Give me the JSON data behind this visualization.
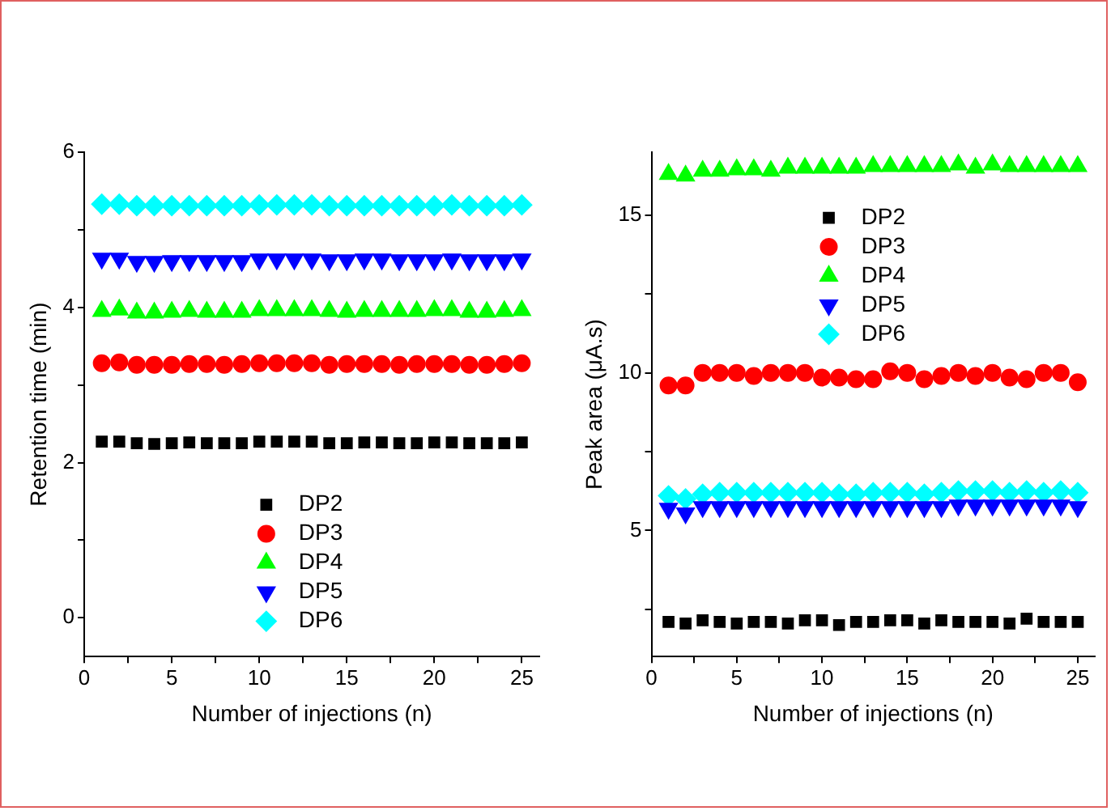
{
  "chart_data": [
    {
      "type": "scatter",
      "xlabel": "Number of injections (n)",
      "ylabel": "Retention time (min)",
      "x": [
        1,
        2,
        3,
        4,
        5,
        6,
        7,
        8,
        9,
        10,
        11,
        12,
        13,
        14,
        15,
        16,
        17,
        18,
        19,
        20,
        21,
        22,
        23,
        24,
        25
      ],
      "xlim": [
        0,
        26
      ],
      "xticks": [
        0,
        {
          "value": 2.5,
          "label": null
        },
        5,
        {
          "value": 7.5,
          "label": null
        },
        10,
        {
          "value": 12.5,
          "label": null
        },
        15,
        {
          "value": 17.5,
          "label": null
        },
        20,
        {
          "value": 22.5,
          "label": null
        },
        25
      ],
      "ylim": [
        -0.5,
        6
      ],
      "yticks": [
        0,
        {
          "value": 1,
          "label": null
        },
        2,
        {
          "value": 3,
          "label": null
        },
        4,
        {
          "value": 5,
          "label": null
        },
        6
      ],
      "grid": false,
      "legend": "bottom",
      "series": [
        {
          "name": "DP2",
          "color": "#000000",
          "marker": "square",
          "values": [
            2.27,
            2.27,
            2.25,
            2.24,
            2.25,
            2.26,
            2.25,
            2.25,
            2.25,
            2.27,
            2.27,
            2.27,
            2.27,
            2.25,
            2.25,
            2.26,
            2.26,
            2.25,
            2.25,
            2.26,
            2.26,
            2.25,
            2.25,
            2.25,
            2.26
          ]
        },
        {
          "name": "DP3",
          "color": "#ff0000",
          "marker": "circle",
          "values": [
            3.28,
            3.29,
            3.26,
            3.26,
            3.26,
            3.27,
            3.27,
            3.26,
            3.27,
            3.28,
            3.28,
            3.28,
            3.28,
            3.26,
            3.27,
            3.27,
            3.27,
            3.26,
            3.27,
            3.27,
            3.27,
            3.26,
            3.26,
            3.27,
            3.28
          ]
        },
        {
          "name": "DP4",
          "color": "#00ff00",
          "marker": "triangle",
          "values": [
            3.95,
            3.97,
            3.93,
            3.93,
            3.94,
            3.95,
            3.94,
            3.94,
            3.94,
            3.96,
            3.96,
            3.96,
            3.96,
            3.95,
            3.94,
            3.95,
            3.95,
            3.95,
            3.95,
            3.96,
            3.96,
            3.94,
            3.94,
            3.95,
            3.96
          ]
        },
        {
          "name": "DP5",
          "color": "#0000ff",
          "marker": "triangle-down",
          "values": [
            4.63,
            4.63,
            4.59,
            4.59,
            4.6,
            4.6,
            4.6,
            4.6,
            4.6,
            4.62,
            4.62,
            4.62,
            4.62,
            4.61,
            4.61,
            4.62,
            4.62,
            4.61,
            4.61,
            4.61,
            4.62,
            4.61,
            4.61,
            4.61,
            4.62
          ]
        },
        {
          "name": "DP6",
          "color": "#00ffff",
          "marker": "diamond",
          "values": [
            5.33,
            5.33,
            5.31,
            5.31,
            5.31,
            5.31,
            5.31,
            5.31,
            5.31,
            5.32,
            5.32,
            5.32,
            5.32,
            5.31,
            5.31,
            5.31,
            5.31,
            5.31,
            5.31,
            5.31,
            5.32,
            5.31,
            5.31,
            5.31,
            5.32
          ]
        }
      ]
    },
    {
      "type": "scatter",
      "xlabel": "Number of injections (n)",
      "ylabel": "Peak area (μA.s)",
      "x": [
        1,
        2,
        3,
        4,
        5,
        6,
        7,
        8,
        9,
        10,
        11,
        12,
        13,
        14,
        15,
        16,
        17,
        18,
        19,
        20,
        21,
        22,
        23,
        24,
        25
      ],
      "xlim": [
        0,
        26
      ],
      "xticks": [
        0,
        {
          "value": 2.5,
          "label": null
        },
        5,
        {
          "value": 7.5,
          "label": null
        },
        10,
        {
          "value": 12.5,
          "label": null
        },
        15,
        {
          "value": 17.5,
          "label": null
        },
        20,
        {
          "value": 22.5,
          "label": null
        },
        25
      ],
      "ylim": [
        1,
        17
      ],
      "yticks": [
        {
          "value": 2.5,
          "label": null
        },
        5,
        {
          "value": 7.5,
          "label": null
        },
        10,
        {
          "value": 12.5,
          "label": null
        },
        15
      ],
      "grid": false,
      "legend": "top",
      "series": [
        {
          "name": "DP2",
          "color": "#000000",
          "marker": "square",
          "values": [
            2.1,
            2.05,
            2.15,
            2.1,
            2.05,
            2.1,
            2.1,
            2.05,
            2.15,
            2.15,
            2.0,
            2.1,
            2.1,
            2.15,
            2.15,
            2.05,
            2.15,
            2.1,
            2.1,
            2.1,
            2.05,
            2.2,
            2.1,
            2.1,
            2.1
          ]
        },
        {
          "name": "DP3",
          "color": "#ff0000",
          "marker": "circle",
          "values": [
            9.6,
            9.6,
            10.0,
            10.0,
            10.0,
            9.9,
            10.0,
            10.0,
            10.0,
            9.85,
            9.85,
            9.8,
            9.8,
            10.05,
            10.0,
            9.8,
            9.9,
            10.0,
            9.9,
            10.0,
            9.85,
            9.8,
            10.0,
            10.0,
            9.7
          ]
        },
        {
          "name": "DP4",
          "color": "#00ff00",
          "marker": "triangle",
          "values": [
            16.3,
            16.25,
            16.4,
            16.4,
            16.45,
            16.45,
            16.4,
            16.5,
            16.5,
            16.5,
            16.5,
            16.5,
            16.55,
            16.55,
            16.55,
            16.55,
            16.55,
            16.6,
            16.5,
            16.6,
            16.55,
            16.55,
            16.55,
            16.55,
            16.55
          ]
        },
        {
          "name": "DP5",
          "color": "#0000ff",
          "marker": "triangle-down",
          "values": [
            5.7,
            5.55,
            5.75,
            5.75,
            5.75,
            5.75,
            5.75,
            5.75,
            5.75,
            5.75,
            5.75,
            5.75,
            5.75,
            5.75,
            5.75,
            5.75,
            5.75,
            5.8,
            5.8,
            5.8,
            5.8,
            5.8,
            5.8,
            5.8,
            5.75
          ]
        },
        {
          "name": "DP6",
          "color": "#00ffff",
          "marker": "diamond",
          "values": [
            6.1,
            6.0,
            6.15,
            6.2,
            6.2,
            6.2,
            6.2,
            6.2,
            6.2,
            6.2,
            6.15,
            6.15,
            6.2,
            6.2,
            6.2,
            6.15,
            6.2,
            6.25,
            6.25,
            6.25,
            6.2,
            6.25,
            6.2,
            6.25,
            6.2
          ]
        }
      ]
    }
  ]
}
